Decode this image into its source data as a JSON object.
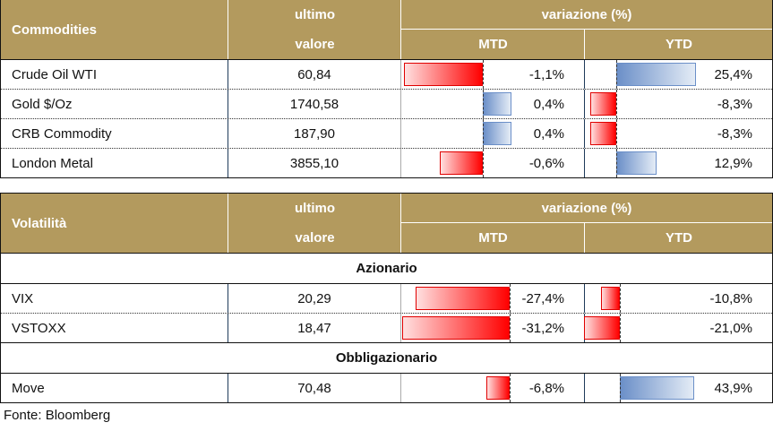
{
  "commodities": {
    "title": "Commodities",
    "col_last": [
      "ultimo",
      "valore"
    ],
    "col_var": "variazione (%)",
    "col_mtd": "MTD",
    "col_ytd": "YTD",
    "rows": [
      {
        "name": "Crude Oil WTI",
        "value": "60,84",
        "mtd": -1.1,
        "mtd_label": "-1,1%",
        "ytd": 25.4,
        "ytd_label": "25,4%"
      },
      {
        "name": "Gold $/Oz",
        "value": "1740,58",
        "mtd": 0.4,
        "mtd_label": "0,4%",
        "ytd": -8.3,
        "ytd_label": "-8,3%"
      },
      {
        "name": "CRB Commodity",
        "value": "187,90",
        "mtd": 0.4,
        "mtd_label": "0,4%",
        "ytd": -8.3,
        "ytd_label": "-8,3%"
      },
      {
        "name": "London Metal",
        "value": "3855,10",
        "mtd": -0.6,
        "mtd_label": "-0,6%",
        "ytd": 12.9,
        "ytd_label": "12,9%"
      }
    ]
  },
  "volatility": {
    "title": "Volatilità",
    "col_last": [
      "ultimo",
      "valore"
    ],
    "col_var": "variazione (%)",
    "col_mtd": "MTD",
    "col_ytd": "YTD",
    "sections": [
      {
        "label": "Azionario",
        "rows": [
          {
            "name": "VIX",
            "value": "20,29",
            "mtd": -27.4,
            "mtd_label": "-27,4%",
            "ytd": -10.8,
            "ytd_label": "-10,8%"
          },
          {
            "name": "VSTOXX",
            "value": "18,47",
            "mtd": -31.2,
            "mtd_label": "-31,2%",
            "ytd": -21.0,
            "ytd_label": "-21,0%"
          }
        ]
      },
      {
        "label": "Obbligazionario",
        "rows": [
          {
            "name": "Move",
            "value": "70,48",
            "mtd": -6.8,
            "mtd_label": "-6,8%",
            "ytd": 43.9,
            "ytd_label": "43,9%"
          }
        ]
      }
    ]
  },
  "footer": "Fonte: Bloomberg",
  "colors": {
    "header": "#b39a5e",
    "negative": "#ff0000",
    "positive": "#6b8fc8"
  }
}
